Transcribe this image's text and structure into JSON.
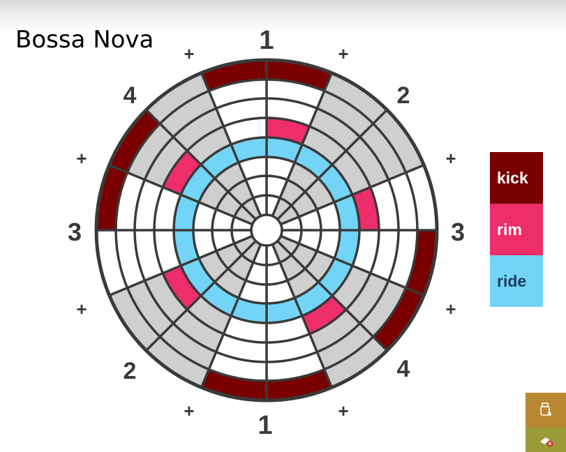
{
  "title": "Bossa Nova",
  "beat_labels": {
    "top": "1",
    "top_right": "2",
    "right": "3",
    "bottom_right": "4",
    "bottom": "1",
    "bottom_left": "2",
    "left": "3",
    "top_left": "4",
    "plus": "+"
  },
  "legend": [
    {
      "label": "kick",
      "color": "#7a0000",
      "text_color": "#ffffff"
    },
    {
      "label": "rim",
      "color": "#ee2d6b",
      "text_color": "#ffffff"
    },
    {
      "label": "ride",
      "color": "#72d5f7",
      "text_color": "#1f3a5a"
    }
  ],
  "pattern": {
    "steps": 16,
    "kick_steps": [
      15,
      0,
      4,
      5,
      7,
      8,
      12,
      13
    ],
    "rim_steps": [
      0,
      3,
      6,
      10,
      13
    ],
    "ride_steps": [
      0,
      1,
      2,
      3,
      4,
      5,
      6,
      7,
      8,
      9,
      10,
      11,
      12,
      13,
      14,
      15
    ]
  },
  "colors": {
    "grey_band": "#cfcfcf",
    "white_band": "#ffffff",
    "lines": "#3a3a3a",
    "corner_top": "#b8872f",
    "corner_bottom": "#9b9a38"
  },
  "icons": {
    "corner_top": "usb-drive-icon",
    "corner_bottom": "remove-device-icon"
  }
}
